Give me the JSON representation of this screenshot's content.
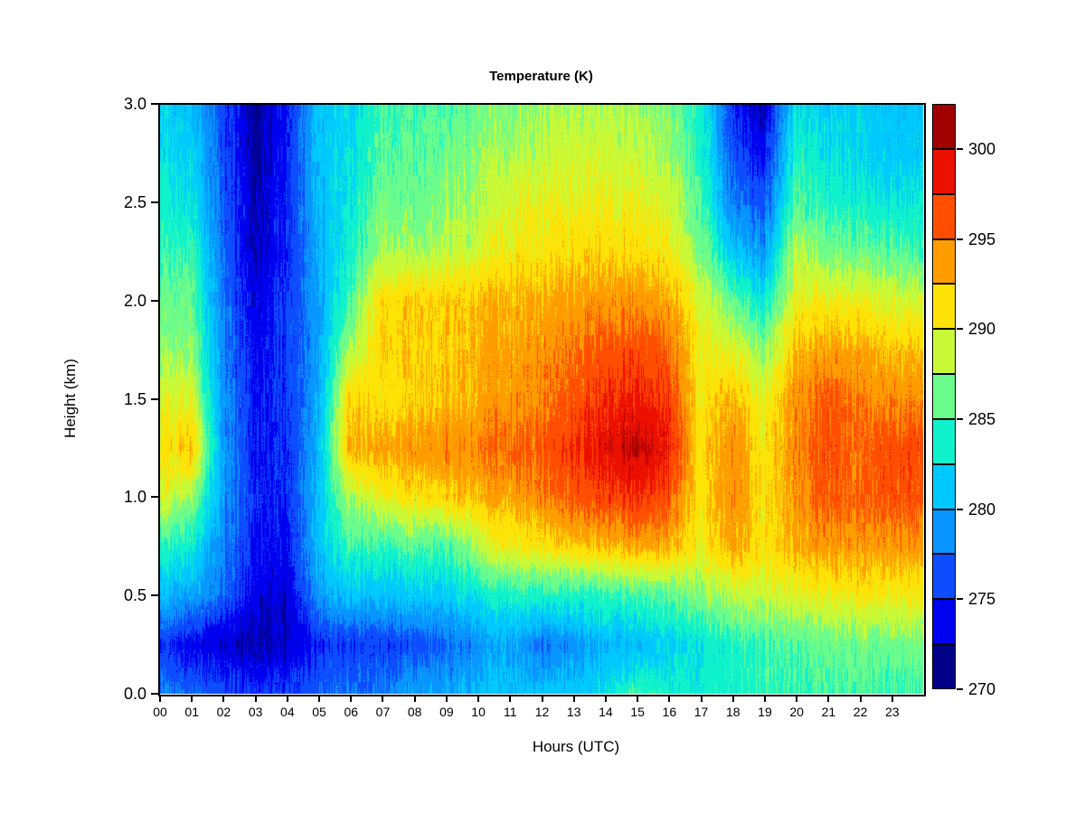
{
  "title": "Temperature (K)",
  "x_axis": {
    "label": "Hours (UTC)",
    "tick_labels": [
      "00",
      "01",
      "02",
      "03",
      "04",
      "05",
      "06",
      "07",
      "08",
      "09",
      "10",
      "11",
      "12",
      "13",
      "14",
      "15",
      "16",
      "17",
      "18",
      "19",
      "20",
      "21",
      "22",
      "23"
    ],
    "tick_values": [
      0,
      1,
      2,
      3,
      4,
      5,
      6,
      7,
      8,
      9,
      10,
      11,
      12,
      13,
      14,
      15,
      16,
      17,
      18,
      19,
      20,
      21,
      22,
      23
    ]
  },
  "y_axis": {
    "label": "Height (km)",
    "tick_labels": [
      "0.0",
      "0.5",
      "1.0",
      "1.5",
      "2.0",
      "2.5",
      "3.0"
    ],
    "tick_values": [
      0,
      0.5,
      1,
      1.5,
      2,
      2.5,
      3
    ]
  },
  "colorbar": {
    "min": 270,
    "max": 302.5,
    "level_step": 2.5,
    "tick_labels": [
      "270",
      "275",
      "280",
      "285",
      "290",
      "295",
      "300"
    ],
    "tick_values": [
      270,
      275,
      280,
      285,
      290,
      295,
      300
    ],
    "colors": [
      "#000089",
      "#0000F0",
      "#0D4DFF",
      "#0995FF",
      "#00C9FF",
      "#0FF2CC",
      "#6BFC8B",
      "#C9FA37",
      "#FFE206",
      "#FF9D00",
      "#FF4E00",
      "#EC1000",
      "#A00000"
    ]
  },
  "chart_data": {
    "type": "heatmap",
    "title": "Temperature (K)",
    "xlabel": "Hours (UTC)",
    "ylabel": "Height (km)",
    "xlim": [
      0,
      24
    ],
    "ylim": [
      0,
      3
    ],
    "value_unit": "K",
    "legend_position": "right-colorbar",
    "grid": false,
    "levels_K": {
      "min": 270,
      "step": 2.5,
      "count": 13
    },
    "noise_amplitude_K": 2.0,
    "x_hours": [
      0,
      1,
      2,
      3,
      4,
      5,
      6,
      7,
      8,
      9,
      10,
      11,
      12,
      13,
      14,
      15,
      16,
      17,
      18,
      19,
      20,
      21,
      22,
      23,
      24
    ],
    "y_heights_km": [
      0,
      0.25,
      0.5,
      0.75,
      1,
      1.25,
      1.5,
      1.75,
      2,
      2.25,
      2.5,
      2.75,
      3
    ],
    "values_K": [
      [
        278,
        277.5,
        276,
        275.5,
        276,
        277,
        277.5,
        278,
        279.5,
        280,
        280.5,
        281,
        281,
        281.5,
        282,
        285,
        284,
        283.5,
        284,
        284.5,
        284.5,
        285,
        285,
        285,
        285
      ],
      [
        275,
        274,
        272.5,
        272,
        272.5,
        275,
        275.5,
        275.5,
        276,
        277,
        278.5,
        280,
        277.5,
        278.5,
        280.5,
        280.5,
        281.5,
        283,
        284,
        285,
        285.5,
        286,
        286,
        286.5,
        286.5
      ],
      [
        280.5,
        280,
        277,
        273.5,
        273,
        279,
        281,
        281,
        281.5,
        281.5,
        283,
        284,
        284,
        284,
        284.5,
        285,
        285.5,
        287,
        288.5,
        289,
        289.5,
        290,
        290.5,
        290.5,
        290.5
      ],
      [
        284.5,
        283.5,
        278,
        274.5,
        274,
        281,
        285,
        284.5,
        285.5,
        285,
        288,
        290.5,
        291,
        292,
        292.5,
        293.5,
        293,
        290.5,
        293.5,
        291,
        293,
        294,
        293.5,
        294,
        294
      ],
      [
        289.5,
        288,
        279,
        275,
        275,
        281,
        288,
        290,
        291,
        292,
        292.5,
        293.5,
        294.5,
        296,
        297,
        297.5,
        296.5,
        291,
        294.5,
        291,
        294,
        296,
        295,
        296.5,
        296
      ],
      [
        290.5,
        293,
        279,
        274.5,
        275,
        280.5,
        293,
        293.5,
        294,
        294.5,
        294.5,
        295.5,
        296,
        297.5,
        299,
        300.5,
        298.5,
        291.5,
        294.5,
        291,
        294.5,
        296.5,
        295,
        296.5,
        296.5
      ],
      [
        289,
        290,
        278.5,
        274.5,
        275.5,
        280,
        292,
        291,
        291.5,
        292.5,
        293,
        294,
        294.5,
        296,
        297.5,
        298,
        297,
        291,
        293,
        290,
        294,
        296,
        294.5,
        294.5,
        294.5
      ],
      [
        287,
        287.5,
        278,
        274,
        275.5,
        279.5,
        288,
        292,
        292,
        292,
        293,
        293.5,
        294,
        295,
        296,
        296.5,
        295.5,
        290.5,
        290,
        287,
        292.5,
        293.5,
        293,
        292.5,
        292.5
      ],
      [
        286,
        286.5,
        277.5,
        273.5,
        275.5,
        279.5,
        285,
        291.5,
        292,
        292,
        292.5,
        293,
        293,
        293.5,
        294,
        294,
        293.5,
        289.5,
        286,
        283,
        290,
        290.5,
        290,
        289.5,
        289
      ],
      [
        284.5,
        285,
        277,
        272.5,
        275,
        280,
        283.5,
        288,
        287.5,
        288.5,
        289,
        290.5,
        291,
        291.5,
        291.5,
        291.5,
        290.5,
        287,
        281.5,
        279,
        288.5,
        286.5,
        286,
        285.5,
        285
      ],
      [
        283.5,
        283,
        276.5,
        272.5,
        275,
        280.5,
        283,
        286.5,
        286,
        287,
        288,
        289.5,
        290,
        290,
        290.5,
        290,
        289,
        285.5,
        278,
        276.5,
        285.5,
        284,
        283.5,
        283,
        283
      ],
      [
        282.5,
        282,
        276,
        272,
        274.5,
        281,
        282.5,
        285.5,
        285.5,
        286,
        287,
        288,
        288.5,
        289,
        289,
        288.5,
        287.5,
        284.5,
        276.5,
        274,
        284,
        282.5,
        282,
        281.5,
        281.5
      ],
      [
        281.5,
        281,
        276,
        272,
        274.5,
        281,
        282,
        285,
        285,
        285.5,
        286,
        287,
        287.5,
        288,
        288,
        287.5,
        286.5,
        284,
        275,
        272.5,
        282.5,
        281.5,
        281.5,
        281,
        281
      ]
    ]
  }
}
